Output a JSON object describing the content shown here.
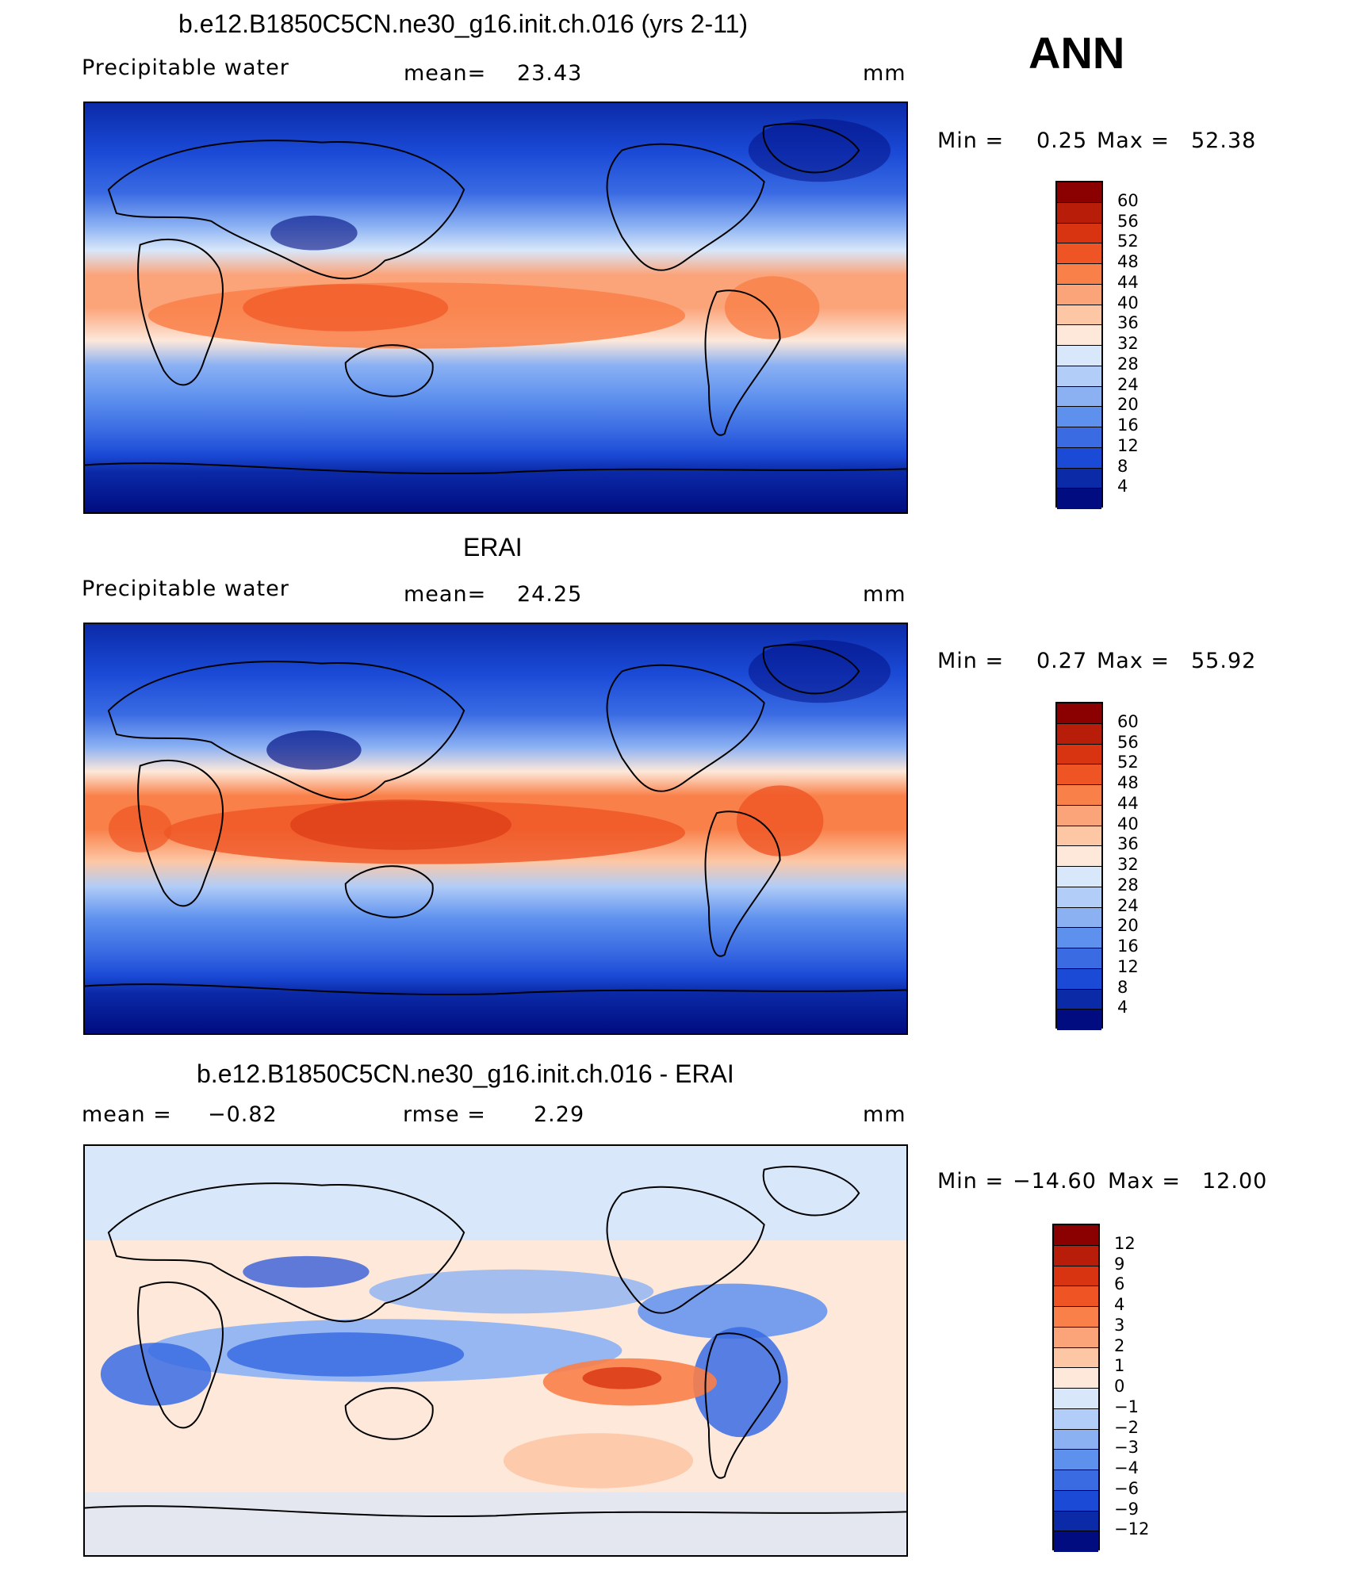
{
  "season": "ANN",
  "panels": [
    {
      "title": "b.e12.B1850C5CN.ne30_g16.init.ch.016 (yrs 2-11)",
      "variable": "Precipitable  water",
      "stat1_label": "mean=",
      "stat1_value": "23.43",
      "units": "mm",
      "min_label": "Min  =",
      "min_value": "0.25",
      "max_label": "Max  =",
      "max_value": "52.38",
      "colorbar": {
        "labels": [
          "60",
          "56",
          "52",
          "48",
          "44",
          "40",
          "36",
          "32",
          "28",
          "24",
          "20",
          "16",
          "12",
          "8",
          "4"
        ],
        "colors": [
          "#8b0000",
          "#b81d0a",
          "#d83411",
          "#ef5524",
          "#f98049",
          "#fba47a",
          "#fdc7a5",
          "#fde8da",
          "#d8e7fa",
          "#b2cdf7",
          "#8bb1f3",
          "#5e91ee",
          "#3a6be3",
          "#1a4ad6",
          "#0b2aa8",
          "#000c80"
        ]
      }
    },
    {
      "title": "ERAI",
      "variable": "Precipitable  water",
      "stat1_label": "mean=",
      "stat1_value": "24.25",
      "units": "mm",
      "min_label": "Min  =",
      "min_value": "0.27",
      "max_label": "Max  =",
      "max_value": "55.92",
      "colorbar": {
        "labels": [
          "60",
          "56",
          "52",
          "48",
          "44",
          "40",
          "36",
          "32",
          "28",
          "24",
          "20",
          "16",
          "12",
          "8",
          "4"
        ],
        "colors": [
          "#8b0000",
          "#b81d0a",
          "#d83411",
          "#ef5524",
          "#f98049",
          "#fba47a",
          "#fdc7a5",
          "#fde8da",
          "#d8e7fa",
          "#b2cdf7",
          "#8bb1f3",
          "#5e91ee",
          "#3a6be3",
          "#1a4ad6",
          "#0b2aa8",
          "#000c80"
        ]
      }
    },
    {
      "title": "b.e12.B1850C5CN.ne30_g16.init.ch.016 - ERAI",
      "variable": "",
      "stat1_label": "mean  =",
      "stat1_value": "−0.82",
      "stat2_label": "rmse  =",
      "stat2_value": "2.29",
      "units": "mm",
      "min_label": "Min  =",
      "min_value": "−14.60",
      "max_label": "Max  =",
      "max_value": "12.00",
      "colorbar": {
        "labels": [
          "12",
          "9",
          "6",
          "4",
          "3",
          "2",
          "1",
          "0",
          "−1",
          "−2",
          "−3",
          "−4",
          "−6",
          "−9",
          "−12"
        ],
        "colors": [
          "#8b0000",
          "#b81d0a",
          "#d83411",
          "#ef5524",
          "#f98049",
          "#fba47a",
          "#fdc7a5",
          "#fde8da",
          "#d8e7fa",
          "#b2cdf7",
          "#8bb1f3",
          "#5e91ee",
          "#3a6be3",
          "#1a4ad6",
          "#0b2aa8",
          "#000c80"
        ]
      }
    }
  ]
}
